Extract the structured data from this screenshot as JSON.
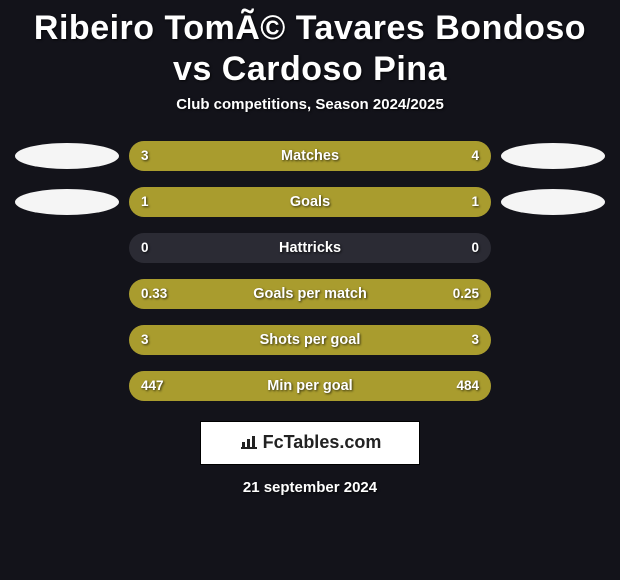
{
  "title": "Ribeiro TomÃ© Tavares Bondoso vs Cardoso Pina",
  "subtitle": "Club competitions, Season 2024/2025",
  "colors": {
    "left": "#a99c2e",
    "right": "#a99c2e",
    "bar_bg": "#2b2b34"
  },
  "stats": [
    {
      "label": "Matches",
      "left_val": "3",
      "right_val": "4",
      "left_pct": 42.9,
      "right_pct": 57.1,
      "show_avatars": true
    },
    {
      "label": "Goals",
      "left_val": "1",
      "right_val": "1",
      "left_pct": 50.0,
      "right_pct": 50.0,
      "show_avatars": true
    },
    {
      "label": "Hattricks",
      "left_val": "0",
      "right_val": "0",
      "left_pct": 0,
      "right_pct": 0,
      "show_avatars": false
    },
    {
      "label": "Goals per match",
      "left_val": "0.33",
      "right_val": "0.25",
      "left_pct": 56.9,
      "right_pct": 43.1,
      "show_avatars": false
    },
    {
      "label": "Shots per goal",
      "left_val": "3",
      "right_val": "3",
      "left_pct": 50.0,
      "right_pct": 50.0,
      "show_avatars": false
    },
    {
      "label": "Min per goal",
      "left_val": "447",
      "right_val": "484",
      "left_pct": 52.0,
      "right_pct": 48.0,
      "show_avatars": false
    }
  ],
  "logo_text": "FcTables.com",
  "date": "21 september 2024"
}
